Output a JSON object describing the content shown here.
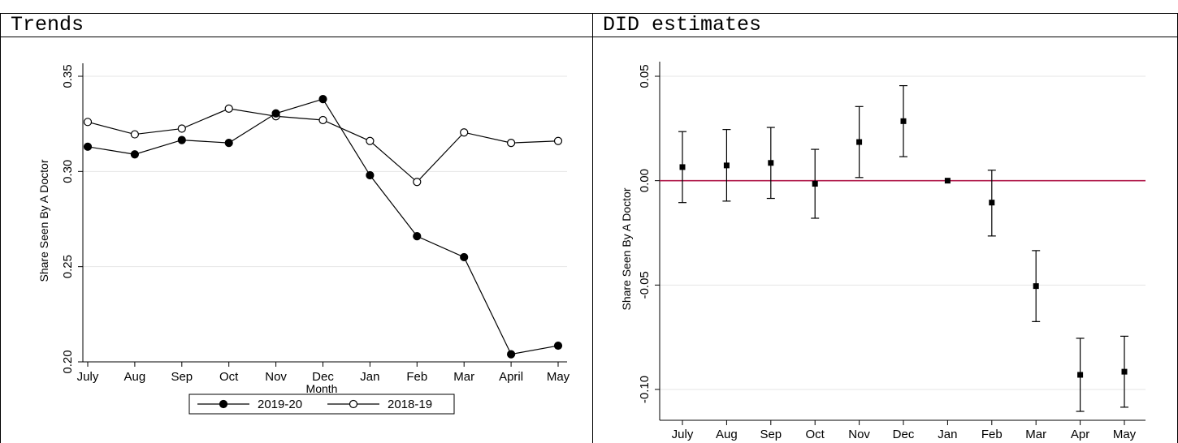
{
  "chart_data": [
    {
      "type": "line",
      "title": "Trends",
      "xlabel": "Month",
      "ylabel": "Share Seen By A Doctor",
      "categories": [
        "July",
        "Aug",
        "Sep",
        "Oct",
        "Nov",
        "Dec",
        "Jan",
        "Feb",
        "Mar",
        "April",
        "May"
      ],
      "ylim": [
        0.2,
        0.35
      ],
      "yticks": [
        "0.20",
        "0.25",
        "0.30",
        "0.35"
      ],
      "grid": true,
      "legend_position": "bottom",
      "series": [
        {
          "name": "2019-20",
          "marker": "filled-circle",
          "values": [
            0.313,
            0.309,
            0.3165,
            0.315,
            0.3305,
            0.338,
            0.298,
            0.266,
            0.255,
            0.204,
            0.2085
          ]
        },
        {
          "name": "2018-19",
          "marker": "hollow-circle",
          "values": [
            0.326,
            0.3195,
            0.3225,
            0.333,
            0.329,
            0.327,
            0.316,
            0.2945,
            0.3205,
            0.315,
            0.316
          ]
        }
      ]
    },
    {
      "type": "scatter",
      "title": "DID estimates",
      "xlabel": "",
      "ylabel": "Share Seen By A Doctor",
      "categories": [
        "July",
        "Aug",
        "Sep",
        "Oct",
        "Nov",
        "Dec",
        "Jan",
        "Feb",
        "Mar",
        "Apr",
        "May"
      ],
      "ylim": [
        -0.12,
        0.05
      ],
      "yticks": [
        "0.05",
        "0.00",
        "-0.05",
        "-0.10"
      ],
      "grid": true,
      "reference_line": {
        "y": 0,
        "color": "#b0194b"
      },
      "estimates": [
        0.0065,
        0.0073,
        0.0085,
        -0.0015,
        0.0185,
        0.0285,
        0.0,
        -0.0105,
        -0.0505,
        -0.093,
        -0.0915
      ],
      "ci_low": [
        -0.0105,
        -0.0098,
        -0.0085,
        -0.018,
        0.0015,
        0.0115,
        0.0,
        -0.0265,
        -0.0675,
        -0.1105,
        -0.1085
      ],
      "ci_high": [
        0.0235,
        0.0245,
        0.0255,
        0.015,
        0.0355,
        0.0455,
        0.0,
        0.005,
        -0.0335,
        -0.0755,
        -0.0745
      ]
    }
  ]
}
